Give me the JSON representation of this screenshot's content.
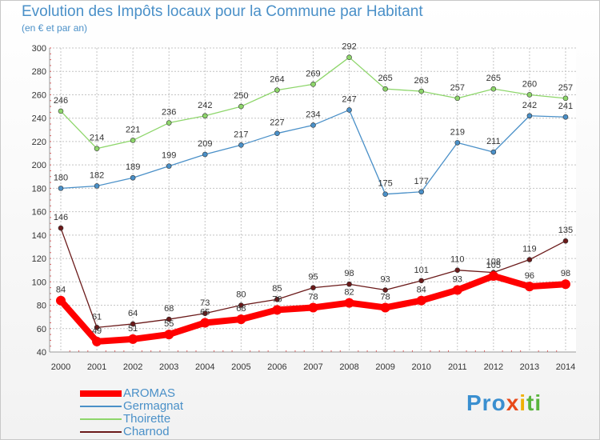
{
  "chart_data": {
    "type": "line",
    "title": "Evolution des Impôts locaux pour la Commune par Habitant",
    "subtitle": "(en € et par an)",
    "x": [
      "2000",
      "2001",
      "2002",
      "2003",
      "2004",
      "2005",
      "2006",
      "2007",
      "2008",
      "2009",
      "2010",
      "2011",
      "2012",
      "2013",
      "2014"
    ],
    "ylim": [
      40,
      300
    ],
    "yticks": [
      "40",
      "60",
      "80",
      "100",
      "120",
      "140",
      "160",
      "180",
      "200",
      "220",
      "240",
      "260",
      "280",
      "300"
    ],
    "series": [
      {
        "name": "AROMAS",
        "color": "#ff0000",
        "values": [
          84,
          49,
          51,
          55,
          65,
          68,
          76,
          78,
          82,
          78,
          84,
          93,
          105,
          96,
          98
        ],
        "labels": [
          "84",
          "49",
          "51",
          "55",
          "65",
          "68",
          "76",
          "78",
          "82",
          "78",
          "84",
          "93",
          "105",
          "96",
          "98"
        ]
      },
      {
        "name": "Germagnat",
        "color": "#4a90c8",
        "values": [
          180,
          182,
          189,
          199,
          209,
          217,
          227,
          234,
          247,
          175,
          177,
          219,
          211,
          242,
          241
        ],
        "labels": [
          "180",
          "182",
          "189",
          "199",
          "209",
          "217",
          "227",
          "234",
          "247",
          "175",
          "177",
          "219",
          "211",
          "242",
          "241"
        ]
      },
      {
        "name": "Thoirette",
        "color": "#8ed66b",
        "values": [
          246,
          214,
          221,
          236,
          242,
          250,
          264,
          269,
          292,
          265,
          263,
          257,
          265,
          260,
          257
        ],
        "labels": [
          "246",
          "214",
          "221",
          "236",
          "242",
          "250",
          "264",
          "269",
          "292",
          "265",
          "263",
          "257",
          "265",
          "260",
          "257"
        ]
      },
      {
        "name": "Charnod",
        "color": "#6b1a1a",
        "values": [
          146,
          61,
          64,
          68,
          73,
          80,
          85,
          95,
          98,
          93,
          101,
          110,
          108,
          119,
          135
        ],
        "labels": [
          "146",
          "61",
          "64",
          "68",
          "73",
          "80",
          "85",
          "95",
          "98",
          "93",
          "101",
          "110",
          "108",
          "119",
          "135"
        ]
      }
    ]
  },
  "logo": {
    "parts": [
      "Pro",
      "x",
      "i",
      "ti"
    ]
  }
}
